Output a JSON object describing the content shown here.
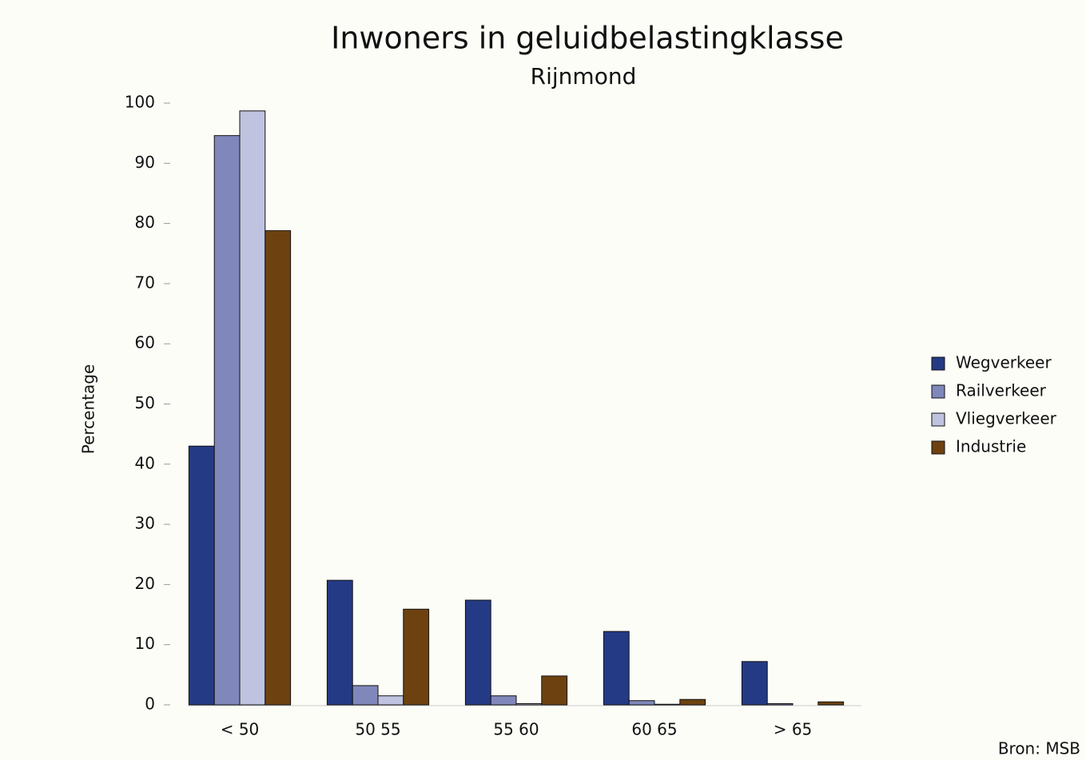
{
  "chart_data": {
    "type": "bar",
    "title": "Inwoners in geluidbelastingklasse",
    "subtitle": "Rijnmond",
    "y_label": "Percentage",
    "source": "Bron: MSB",
    "categories": [
      "< 50",
      "50 55",
      "55 60",
      "60 65",
      "> 65"
    ],
    "series": [
      {
        "name": "Wegverkeer",
        "color": "#253a84",
        "values": [
          43,
          20.7,
          17.4,
          12.2,
          7.2
        ]
      },
      {
        "name": "Railverkeer",
        "color": "#8088bb",
        "values": [
          94.6,
          3.2,
          1.5,
          0.7,
          0.2
        ]
      },
      {
        "name": "Vliegverkeer",
        "color": "#c0c3df",
        "values": [
          98.7,
          1.5,
          0.2,
          0.1,
          0
        ]
      },
      {
        "name": "Industrie",
        "color": "#6e4210",
        "values": [
          78.8,
          15.9,
          4.8,
          0.9,
          0.5
        ]
      }
    ],
    "ylim": [
      0,
      100
    ],
    "yticks": [
      0,
      10,
      20,
      30,
      40,
      50,
      60,
      70,
      80,
      90,
      100
    ],
    "grid": false,
    "legend": "right"
  }
}
